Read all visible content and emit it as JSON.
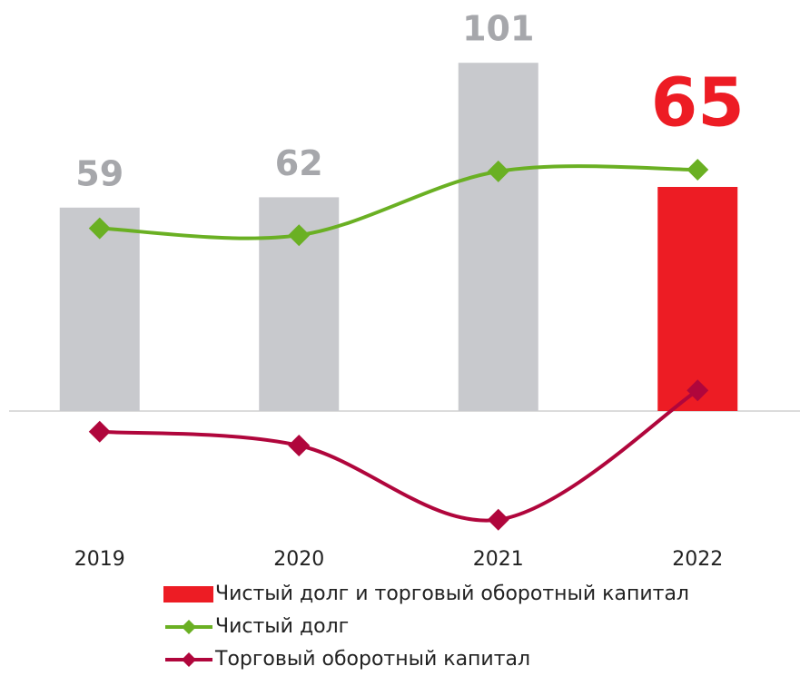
{
  "chart_data": {
    "type": "bar",
    "categories": [
      "2019",
      "2020",
      "2021",
      "2022"
    ],
    "series": [
      {
        "name": "Чистый долг и торговый оборотный капитал",
        "type": "bar",
        "colors": [
          "#c8c9cd",
          "#c8c9cd",
          "#c8c9cd",
          "#ed1c24"
        ],
        "values": [
          59,
          62,
          101,
          65
        ]
      },
      {
        "name": "Чистый долг",
        "type": "line",
        "color": "#6ab023",
        "values": [
          53,
          51,
          69.5,
          70
        ]
      },
      {
        "name": "Торговый оборотный капитал",
        "type": "line",
        "color": "#b0063c",
        "values": [
          -6,
          -10,
          -31.5,
          6
        ]
      }
    ],
    "ylim": [
      -40,
      110
    ],
    "legend": "bottom"
  }
}
